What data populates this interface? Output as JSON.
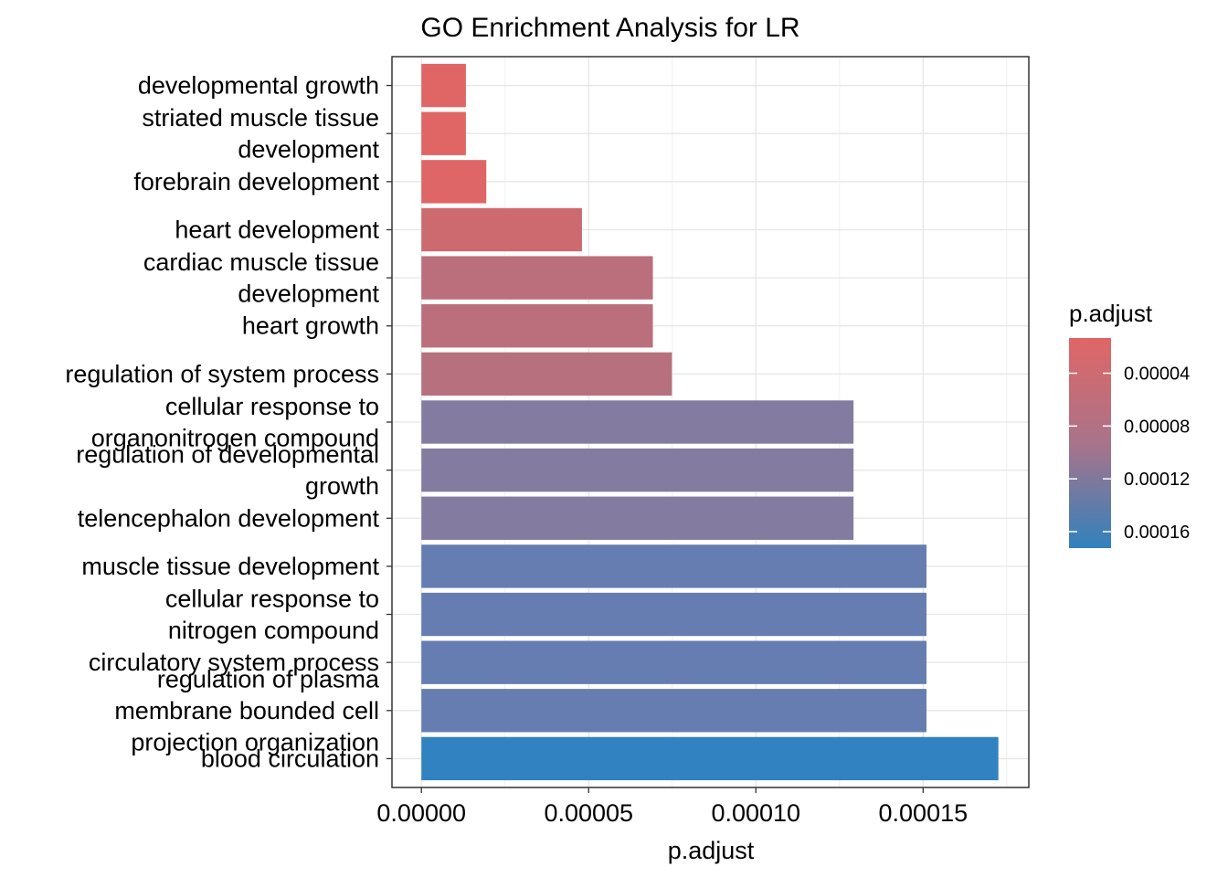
{
  "chart_data": {
    "type": "bar",
    "orientation": "horizontal",
    "title": "GO Enrichment Analysis for LR",
    "xlabel": "p.adjust",
    "ylabel": "",
    "xlim": [
      -8.8e-06,
      0.0001816
    ],
    "x_ticks": [
      0,
      5e-05,
      0.0001,
      0.00015
    ],
    "x_tick_labels": [
      "0.00000",
      "0.00005",
      "0.00010",
      "0.00015"
    ],
    "grid": true,
    "categories": [
      [
        "developmental growth"
      ],
      [
        "striated muscle tissue",
        "development"
      ],
      [
        "forebrain development"
      ],
      [
        "heart development"
      ],
      [
        "cardiac muscle tissue",
        "development"
      ],
      [
        "heart growth"
      ],
      [
        "regulation of system process"
      ],
      [
        "cellular response to",
        "organonitrogen compound"
      ],
      [
        "regulation of developmental",
        "growth"
      ],
      [
        "telencephalon development"
      ],
      [
        "muscle tissue development"
      ],
      [
        "cellular response to",
        "nitrogen compound"
      ],
      [
        "circulatory system process"
      ],
      [
        "regulation of plasma",
        "membrane bounded cell",
        "projection organization"
      ],
      [
        "blood circulation"
      ]
    ],
    "values": [
      1.33e-05,
      1.33e-05,
      1.94e-05,
      4.8e-05,
      6.92e-05,
      6.92e-05,
      7.49e-05,
      0.0001292,
      0.0001292,
      0.0001292,
      0.000151,
      0.000151,
      0.000151,
      0.000151,
      0.0001725
    ],
    "bar_colors": [
      "#E06666",
      "#E06666",
      "#DE6667",
      "#CD6A70",
      "#BB6E7B",
      "#BB6E7B",
      "#B7707E",
      "#847CA0",
      "#847CA0",
      "#847CA0",
      "#657DB0",
      "#657DB0",
      "#657DB0",
      "#657DB0",
      "#3182C0"
    ],
    "legend": {
      "title": "p.adjust",
      "position": "right",
      "type": "gradient",
      "low_color": "#E06666",
      "high_color": "#3182BD",
      "range": [
        1.33e-05,
        0.0001725
      ],
      "ticks": [
        4e-05,
        8e-05,
        0.00012,
        0.00016
      ],
      "tick_labels": [
        "0.00004",
        "0.00008",
        "0.00012",
        "0.00016"
      ]
    }
  }
}
